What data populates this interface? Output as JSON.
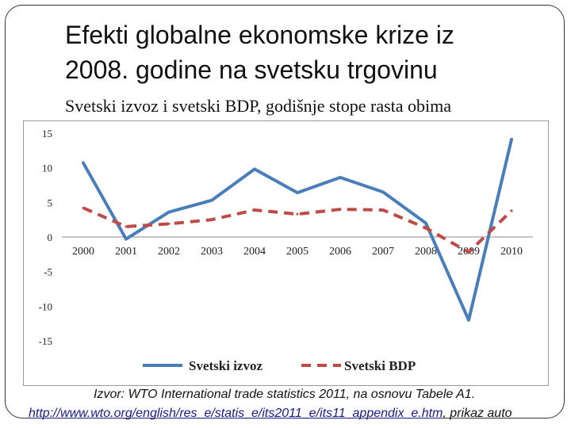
{
  "slide": {
    "title_line1": "Efekti globalne ekonomske krize iz",
    "title_line2": "2008. godine na svetsku trgovinu",
    "subtitle": "Svetski izvoz i svetski BDP, godišnje stope rasta obima",
    "source_line1": "Izvor: WTO International trade statistics 2011, na osnovu Tabele A1.",
    "source_link": "http://www.wto.org/english/res_e/statis_e/its2011_e/its11_appendix_e.htm",
    "source_suffix": ", prikaz auto"
  },
  "colors": {
    "izvoz": "#4a7ebb",
    "bdp": "#be4b48",
    "gridline": "#d9d9d9",
    "axis": "#8c8c8c"
  },
  "chart_data": {
    "type": "line",
    "x": [
      "2000",
      "2001",
      "2002",
      "2003",
      "2004",
      "2005",
      "2006",
      "2007",
      "2008",
      "2009",
      "2010"
    ],
    "yticks": [
      "15",
      "10",
      "5",
      "0",
      "-5",
      "-10",
      "-15"
    ],
    "ylim": [
      -15,
      15
    ],
    "grid": true,
    "legend_position": "bottom",
    "series": [
      {
        "name": "Svetski izvoz",
        "values": [
          10.7,
          -0.3,
          3.6,
          5.3,
          9.8,
          6.4,
          8.6,
          6.5,
          2.0,
          -12.0,
          14.1
        ]
      },
      {
        "name": "Svetski BDP",
        "values": [
          4.2,
          1.5,
          1.9,
          2.5,
          3.9,
          3.3,
          4.0,
          3.9,
          1.3,
          -2.2,
          3.8
        ]
      }
    ]
  }
}
